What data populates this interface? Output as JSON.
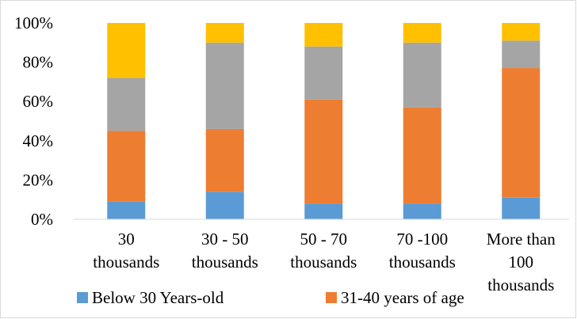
{
  "chart_data": {
    "type": "bar",
    "stacked": "percent",
    "title": "",
    "xlabel": "",
    "ylabel": "",
    "ylim": [
      0,
      100
    ],
    "yticks": [
      "0%",
      "20%",
      "40%",
      "60%",
      "80%",
      "100%"
    ],
    "categories": [
      [
        "30",
        "thousands"
      ],
      [
        "30 - 50",
        "thousands"
      ],
      [
        "50 - 70",
        "thousands"
      ],
      [
        "70 -100",
        "thousands"
      ],
      [
        "More than",
        "100",
        "thousands"
      ]
    ],
    "series": [
      {
        "name": "Below 30 Years-old",
        "color": "#5b9bd5",
        "values": [
          9,
          14,
          8,
          8,
          11
        ]
      },
      {
        "name": "31-40 years of age",
        "color": "#ed7d31",
        "values": [
          36,
          32,
          53,
          49,
          66
        ]
      },
      {
        "color": "#a5a5a5",
        "values": [
          27,
          44,
          27,
          33,
          14
        ]
      },
      {
        "color": "#ffc000",
        "values": [
          28,
          10,
          12,
          10,
          9
        ]
      }
    ],
    "grid": false,
    "legend": "bottom"
  }
}
